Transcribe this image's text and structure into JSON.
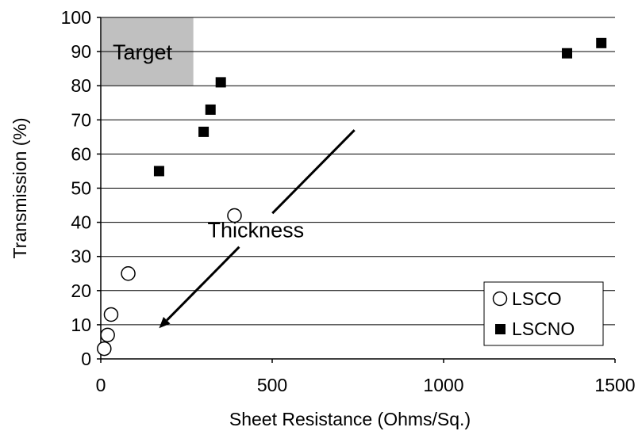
{
  "chart_data": {
    "type": "scatter",
    "title": "",
    "xlabel": "Sheet Resistance (Ohms/Sq.)",
    "ylabel": "Transmission (%)",
    "xlim": [
      0,
      1500
    ],
    "ylim": [
      0,
      100
    ],
    "x_ticks": [
      "0",
      "500",
      "1000",
      "1500"
    ],
    "y_ticks": [
      "0",
      "10",
      "20",
      "30",
      "40",
      "50",
      "60",
      "70",
      "80",
      "90",
      "100"
    ],
    "grid": "horizontal",
    "legend_position": "bottom-right",
    "series": [
      {
        "name": "LSCO",
        "marker": "open-circle",
        "points": [
          {
            "x": 10,
            "y": 3
          },
          {
            "x": 20,
            "y": 7
          },
          {
            "x": 30,
            "y": 13
          },
          {
            "x": 80,
            "y": 25
          },
          {
            "x": 390,
            "y": 42
          }
        ]
      },
      {
        "name": "LSCNO",
        "marker": "filled-square",
        "points": [
          {
            "x": 170,
            "y": 55
          },
          {
            "x": 300,
            "y": 66.5
          },
          {
            "x": 320,
            "y": 73
          },
          {
            "x": 350,
            "y": 81
          },
          {
            "x": 1360,
            "y": 89.5
          },
          {
            "x": 1460,
            "y": 92.5
          }
        ]
      }
    ],
    "target_region": {
      "label": "Target",
      "x_range": [
        0,
        270
      ],
      "y_range": [
        80,
        100
      ],
      "color": "#c0c0c0"
    },
    "arrow_annotation": {
      "label": "Thickness",
      "from": {
        "x": 740,
        "y": 67
      },
      "to": {
        "x": 170,
        "y": 9
      }
    }
  }
}
